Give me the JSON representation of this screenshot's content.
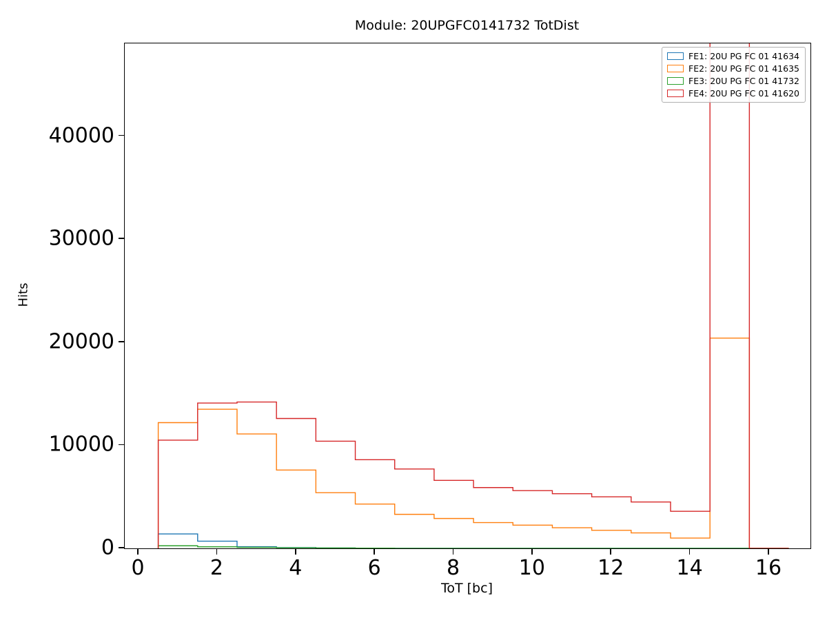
{
  "chart_data": {
    "type": "line",
    "subtype": "step-histogram",
    "title": "Module: 20UPGFC0141732 TotDist",
    "xlabel": "ToT [bc]",
    "ylabel": "Hits",
    "xlim": [
      -0.35,
      17.05
    ],
    "ylim": [
      0,
      49000
    ],
    "xticks": [
      0,
      2,
      4,
      6,
      8,
      10,
      12,
      14,
      16
    ],
    "yticks": [
      0,
      10000,
      20000,
      30000,
      40000
    ],
    "grid": false,
    "legend_position": "upper right",
    "bin_edges": [
      0.5,
      1.5,
      2.5,
      3.5,
      4.5,
      5.5,
      6.5,
      7.5,
      8.5,
      9.5,
      10.5,
      11.5,
      12.5,
      13.5,
      14.5,
      15.5,
      16.5
    ],
    "series": [
      {
        "name": "FE1: 20U PG FC 01 41634",
        "color": "#1f77b4",
        "values": [
          1400,
          700,
          150,
          80,
          40,
          20,
          0,
          0,
          0,
          0,
          0,
          0,
          0,
          0,
          0,
          0
        ]
      },
      {
        "name": "FE2: 20U PG FC 01 41635",
        "color": "#ff7f0e",
        "values": [
          12200,
          13500,
          11100,
          7600,
          5400,
          4300,
          3300,
          2900,
          2500,
          2250,
          2000,
          1750,
          1500,
          1000,
          20400,
          0
        ]
      },
      {
        "name": "FE3: 20U PG FC 01 41732",
        "color": "#2ca02c",
        "values": [
          250,
          150,
          100,
          60,
          40,
          20,
          0,
          0,
          0,
          0,
          0,
          0,
          0,
          0,
          0,
          0
        ]
      },
      {
        "name": "FE4: 20U PG FC 01 41620",
        "color": "#d62728",
        "values": [
          10500,
          14100,
          14200,
          12600,
          10400,
          8600,
          7700,
          6600,
          5900,
          5600,
          5300,
          5000,
          4500,
          3600,
          60000,
          0
        ],
        "peak_clipped_above_ymax": true
      }
    ]
  }
}
